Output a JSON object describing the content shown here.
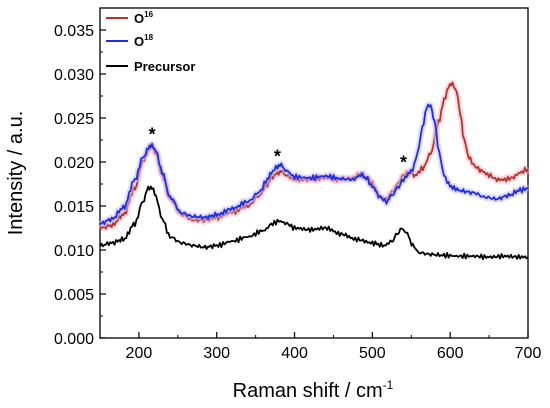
{
  "chart_data": {
    "type": "line",
    "title": "",
    "xlabel": "Raman shift / cm",
    "xlabel_superscript": "-1",
    "ylabel": "Intensity / a.u.",
    "xlim": [
      150,
      700
    ],
    "ylim": [
      0.0,
      0.0375
    ],
    "xticks": [
      200,
      300,
      400,
      500,
      600,
      700
    ],
    "xtick_labels": [
      "200",
      "300",
      "400",
      "500",
      "600",
      "700"
    ],
    "yticks": [
      0.0,
      0.005,
      0.01,
      0.015,
      0.02,
      0.025,
      0.03,
      0.035
    ],
    "ytick_labels": [
      "0.000",
      "0.005",
      "0.010",
      "0.015",
      "0.020",
      "0.025",
      "0.030",
      "0.035"
    ],
    "grid": false,
    "legend_position": "top-left",
    "annotations": [
      {
        "text": "*",
        "x": 217,
        "y": 0.0236
      },
      {
        "text": "*",
        "x": 378,
        "y": 0.0211
      },
      {
        "text": "*",
        "x": 540,
        "y": 0.0204
      }
    ],
    "series": [
      {
        "name": "O",
        "sup": "16",
        "color": "#b5342b",
        "x": [
          150,
          165,
          180,
          195,
          205,
          212,
          217,
          222,
          230,
          240,
          255,
          270,
          285,
          300,
          320,
          340,
          355,
          365,
          372,
          378,
          383,
          390,
          400,
          420,
          440,
          460,
          475,
          485,
          492,
          500,
          510,
          518,
          525,
          532,
          540,
          548,
          555,
          565,
          575,
          585,
          592,
          598,
          603,
          608,
          613,
          618,
          624,
          632,
          640,
          650,
          660,
          670,
          680,
          690,
          700
        ],
        "y": [
          0.0125,
          0.0128,
          0.014,
          0.017,
          0.02,
          0.0213,
          0.0218,
          0.021,
          0.0185,
          0.0158,
          0.014,
          0.0134,
          0.0134,
          0.0137,
          0.0143,
          0.015,
          0.0162,
          0.0175,
          0.0183,
          0.0188,
          0.0189,
          0.0185,
          0.018,
          0.018,
          0.0182,
          0.018,
          0.0182,
          0.0186,
          0.0183,
          0.0175,
          0.016,
          0.0158,
          0.0165,
          0.0175,
          0.0185,
          0.0188,
          0.0185,
          0.0193,
          0.021,
          0.0245,
          0.027,
          0.0285,
          0.029,
          0.028,
          0.0255,
          0.0225,
          0.0205,
          0.0195,
          0.019,
          0.0185,
          0.018,
          0.018,
          0.0182,
          0.0188,
          0.0192
        ]
      },
      {
        "name": "O",
        "sup": "18",
        "color": "#1f2fe0",
        "x": [
          150,
          165,
          180,
          195,
          205,
          212,
          217,
          222,
          230,
          240,
          255,
          270,
          285,
          300,
          320,
          340,
          355,
          365,
          372,
          378,
          383,
          390,
          400,
          420,
          440,
          460,
          475,
          485,
          492,
          500,
          510,
          518,
          525,
          532,
          540,
          548,
          552,
          558,
          564,
          570,
          575,
          580,
          586,
          592,
          598,
          605,
          615,
          630,
          645,
          660,
          675,
          690,
          700
        ],
        "y": [
          0.013,
          0.0135,
          0.0148,
          0.018,
          0.0205,
          0.0215,
          0.022,
          0.0212,
          0.0188,
          0.016,
          0.0142,
          0.0138,
          0.0137,
          0.014,
          0.0147,
          0.0155,
          0.0166,
          0.018,
          0.019,
          0.0195,
          0.0196,
          0.019,
          0.0183,
          0.0182,
          0.0184,
          0.0181,
          0.018,
          0.0185,
          0.0182,
          0.0172,
          0.016,
          0.0155,
          0.0162,
          0.017,
          0.018,
          0.0188,
          0.0192,
          0.021,
          0.0238,
          0.0262,
          0.0265,
          0.0245,
          0.021,
          0.0185,
          0.0175,
          0.017,
          0.0167,
          0.0165,
          0.016,
          0.0158,
          0.0162,
          0.0168,
          0.017
        ]
      },
      {
        "name": "Precursor",
        "sup": "",
        "color": "#000000",
        "x": [
          150,
          165,
          180,
          195,
          205,
          212,
          217,
          222,
          230,
          240,
          255,
          270,
          285,
          300,
          320,
          340,
          360,
          372,
          380,
          390,
          400,
          420,
          440,
          460,
          480,
          500,
          515,
          525,
          532,
          538,
          545,
          552,
          560,
          575,
          590,
          610,
          630,
          650,
          670,
          690,
          700
        ],
        "y": [
          0.0105,
          0.0108,
          0.0112,
          0.013,
          0.0155,
          0.017,
          0.0172,
          0.016,
          0.0135,
          0.0115,
          0.0108,
          0.0105,
          0.0103,
          0.0105,
          0.011,
          0.0115,
          0.0122,
          0.013,
          0.0133,
          0.013,
          0.0125,
          0.0123,
          0.0125,
          0.0118,
          0.0112,
          0.0108,
          0.0105,
          0.011,
          0.0118,
          0.0125,
          0.0118,
          0.0105,
          0.0097,
          0.0095,
          0.0094,
          0.0093,
          0.0093,
          0.0092,
          0.0093,
          0.0092,
          0.0092
        ]
      }
    ]
  }
}
